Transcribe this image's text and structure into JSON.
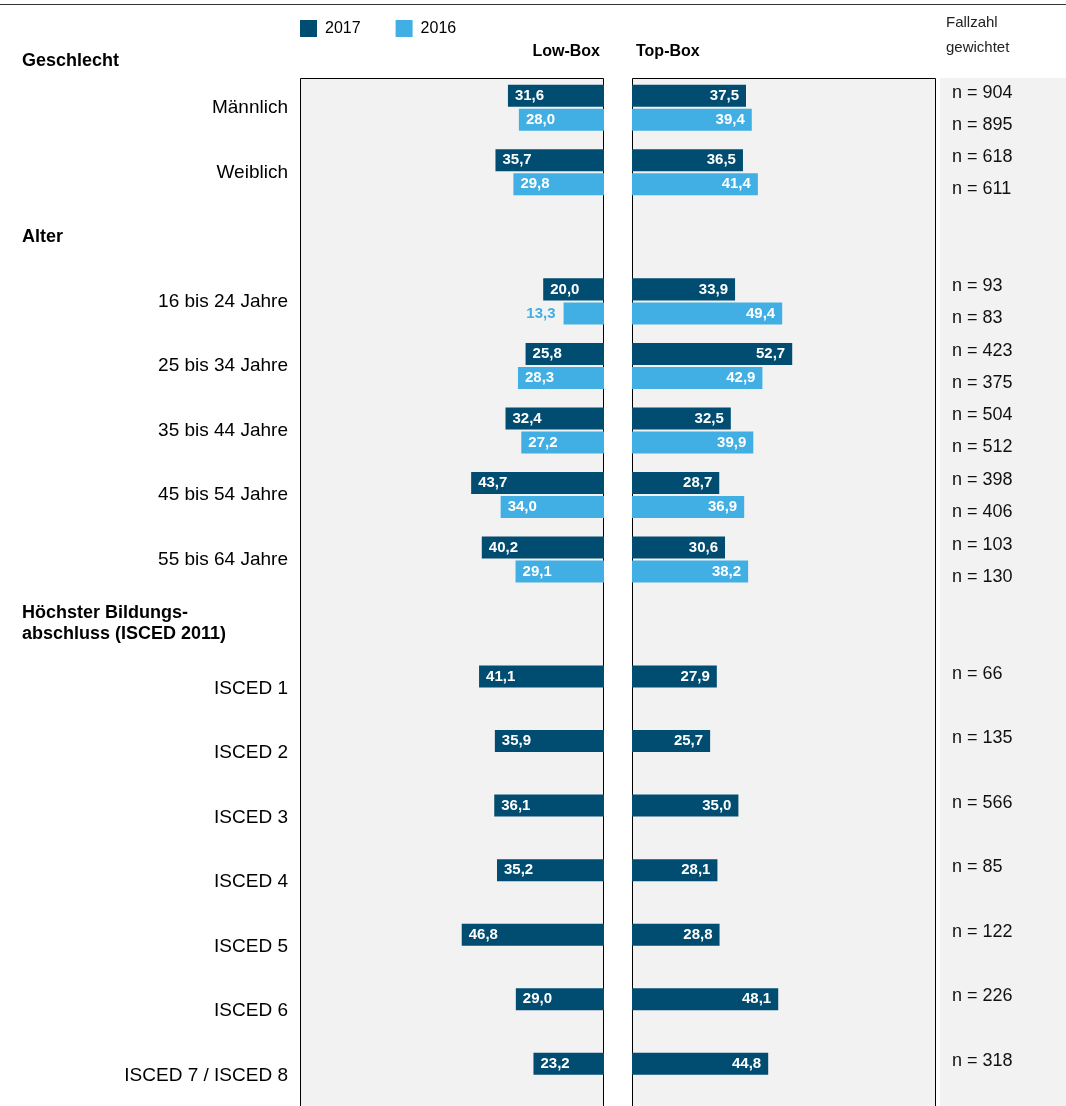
{
  "chart_data": [
    {
      "type": "bar",
      "orientation": "horizontal",
      "xlabel": "Low-Box",
      "legend": "top",
      "xlim": [
        100,
        0
      ],
      "categories": [
        null,
        "Männlich",
        "Weiblich",
        null,
        "16 bis 24 Jahre",
        "25 bis 34 Jahre",
        "35 bis 44 Jahre",
        "45 bis 54 Jahre",
        "55 bis 64 Jahre",
        null,
        "ISCED 1",
        "ISCED 2",
        "ISCED 3",
        "ISCED 4",
        "ISCED 5",
        "ISCED 6",
        "ISCED 7 / ISCED 8"
      ],
      "annotations": [
        "Geschlecht",
        "Alter",
        "Höchster Bildungs-\nabschluss (ISCED 2011)"
      ],
      "series": [
        {
          "name": "2017",
          "color": "#004d71",
          "values": [
            null,
            31.6,
            35.7,
            null,
            20.0,
            25.8,
            32.4,
            43.7,
            40.2,
            null,
            41.1,
            35.9,
            36.1,
            35.2,
            46.8,
            29.0,
            23.2
          ],
          "value_labels": [
            null,
            "31,6",
            "35,7",
            null,
            "20,0",
            "25,8",
            "32,4",
            "43,7",
            "40,2",
            null,
            "41,1",
            "35,9",
            "36,1",
            "35,2",
            "46,8",
            "29,0",
            "23,2"
          ]
        },
        {
          "name": "2016",
          "color": "#41afe3",
          "values": [
            null,
            28.0,
            29.8,
            null,
            13.3,
            28.3,
            27.2,
            34.0,
            29.1,
            null,
            null,
            null,
            null,
            null,
            null,
            null,
            null
          ],
          "value_labels": [
            null,
            "28,0",
            "29,8",
            null,
            "13,3",
            "28,3",
            "27,2",
            "34,0",
            "29,1",
            null,
            null,
            null,
            null,
            null,
            null,
            null,
            null
          ]
        }
      ]
    },
    {
      "type": "bar",
      "orientation": "horizontal",
      "xlabel": "Top-Box",
      "xlim": [
        0,
        100
      ],
      "categories": [
        null,
        null,
        null,
        null,
        null,
        null,
        null,
        null,
        null,
        null,
        null,
        null,
        null,
        null,
        null,
        null,
        null
      ],
      "series": [
        {
          "color": "#004d71",
          "values": [
            null,
            37.5,
            36.5,
            null,
            33.9,
            52.7,
            32.5,
            28.7,
            30.6,
            null,
            27.9,
            25.7,
            35.0,
            28.1,
            28.8,
            48.1,
            44.8
          ],
          "value_labels": [
            null,
            "37,5",
            "36,5",
            null,
            "33,9",
            "52,7",
            "32,5",
            "28,7",
            "30,6",
            null,
            "27,9",
            "25,7",
            "35,0",
            "28,1",
            "28,8",
            "48,1",
            "44,8"
          ]
        },
        {
          "color": "#41afe3",
          "values": [
            null,
            39.4,
            41.4,
            null,
            49.4,
            42.9,
            39.9,
            36.9,
            38.2,
            null,
            null,
            null,
            null,
            null,
            null,
            null,
            null
          ],
          "value_labels": [
            null,
            "39,4",
            "41,4",
            null,
            "49,4",
            "42,9",
            "39,9",
            "36,9",
            "38,2",
            null,
            null,
            null,
            null,
            null,
            null,
            null,
            null
          ]
        }
      ]
    },
    {
      "type": "other",
      "title": "Fallzahl gewichtet",
      "annotations": [
        "n = 904",
        "n = 895",
        "n = 618",
        "n = 611",
        "n = 93",
        "n = 83",
        "n = 423",
        "n = 375",
        "n = 504",
        "n = 512",
        "n = 398",
        "n = 406",
        "n = 103",
        "n = 130",
        "n = 66",
        "n = 135",
        "n = 566",
        "n = 85",
        "n = 122",
        "n = 226",
        "n = 318"
      ]
    }
  ]
}
